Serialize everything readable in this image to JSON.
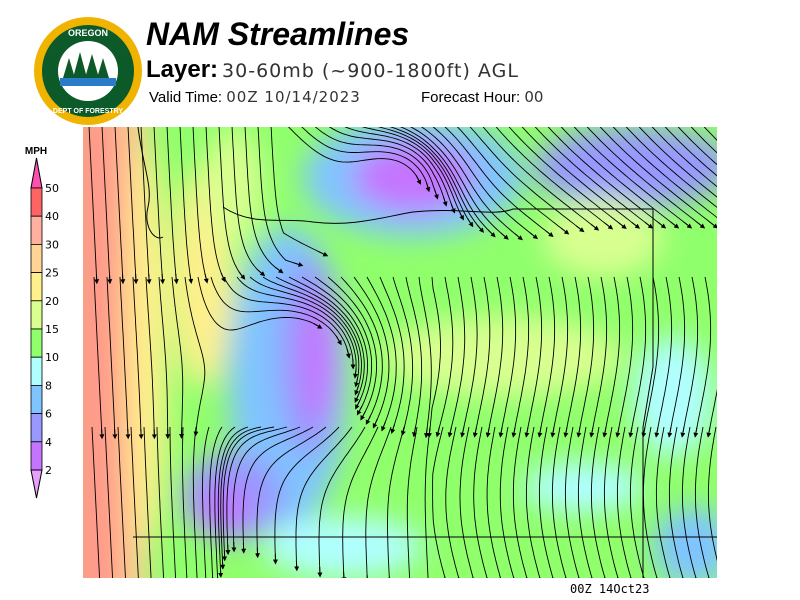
{
  "header": {
    "title": "NAM Streamlines",
    "layer_label": "Layer:",
    "layer_value": "30-60mb (~900-1800ft) AGL",
    "valid_label": "Valid Time:",
    "valid_value": "00Z 10/14/2023",
    "forecast_label": "Forecast Hour:",
    "forecast_value": "00"
  },
  "logo": {
    "text": "OREGON DEPARTMENT OF FORESTRY"
  },
  "legend": {
    "unit": "MPH",
    "labels": [
      "50",
      "40",
      "30",
      "25",
      "20",
      "15",
      "10",
      "8",
      "6",
      "4",
      "2"
    ],
    "colors": [
      "#ff50b0",
      "#ff6464",
      "#ffb0a0",
      "#ffd495",
      "#fff08c",
      "#d8ff90",
      "#90ff6c",
      "#b0ffff",
      "#80c4ff",
      "#9898ff",
      "#c474ff",
      "#e8a0ff"
    ]
  },
  "map": {
    "region": "Pacific Northwest (Oregon / Washington)",
    "timestamp": "00Z 14Oct23"
  }
}
